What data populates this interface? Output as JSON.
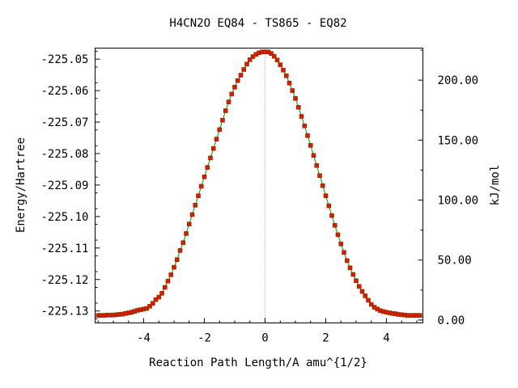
{
  "chart_data": {
    "type": "scatter",
    "title": "H4CN2O   EQ84 - TS865 - EQ82",
    "xlabel": "Reaction Path Length/A amu^{1/2}",
    "ylabel": "Energy/Hartree",
    "y2label": "kJ/mol",
    "xlim": [
      -5.6,
      5.2
    ],
    "ylim": [
      -225.1338,
      -225.0465
    ],
    "y2lim": [
      -2.4,
      226.7
    ],
    "x_ticks": [
      -4,
      -2,
      0,
      2,
      4
    ],
    "x_tick_labels": [
      "-4",
      "-2",
      "0",
      "2",
      "4"
    ],
    "y_ticks": [
      -225.05,
      -225.06,
      -225.07,
      -225.08,
      -225.09,
      -225.1,
      -225.11,
      -225.12,
      -225.13
    ],
    "y_tick_labels": [
      "-225.05",
      "-225.06",
      "-225.07",
      "-225.08",
      "-225.09",
      "-225.10",
      "-225.11",
      "-225.12",
      "-225.13"
    ],
    "y2_ticks": [
      200,
      150,
      100,
      50,
      0
    ],
    "y2_tick_labels": [
      "200.00",
      "150.00",
      "100.00",
      "50.00",
      "0.00"
    ],
    "ts_x": 0,
    "grid": false,
    "legend": "none",
    "colors": {
      "points": "#cc2200",
      "points_edge": "#992200",
      "line": "#00a000",
      "ts_marker": "#999999"
    },
    "series": [
      {
        "x": [
          -5.5,
          -5.4,
          -5.3,
          -5.2,
          -5.1,
          -5.0,
          -4.9,
          -4.8,
          -4.7,
          -4.6,
          -4.5,
          -4.4,
          -4.3,
          -4.2,
          -4.1,
          -4.0,
          -3.9,
          -3.8,
          -3.7,
          -3.6,
          -3.5,
          -3.4,
          -3.3,
          -3.2,
          -3.1,
          -3.0,
          -2.9,
          -2.8,
          -2.7,
          -2.6,
          -2.5,
          -2.4,
          -2.3,
          -2.2,
          -2.1,
          -2.0,
          -1.9,
          -1.8,
          -1.7,
          -1.6,
          -1.5,
          -1.4,
          -1.3,
          -1.2,
          -1.1,
          -1.0,
          -0.9,
          -0.8,
          -0.7,
          -0.6,
          -0.5,
          -0.4,
          -0.3,
          -0.2,
          -0.1,
          0.0,
          0.1,
          0.2,
          0.3,
          0.4,
          0.5,
          0.6,
          0.7,
          0.8,
          0.9,
          1.0,
          1.1,
          1.2,
          1.3,
          1.4,
          1.5,
          1.6,
          1.7,
          1.8,
          1.9,
          2.0,
          2.1,
          2.2,
          2.3,
          2.4,
          2.5,
          2.6,
          2.7,
          2.8,
          2.9,
          3.0,
          3.1,
          3.2,
          3.3,
          3.4,
          3.5,
          3.6,
          3.7,
          3.8,
          3.9,
          4.0,
          4.1,
          4.2,
          4.3,
          4.4,
          4.5,
          4.6,
          4.7,
          4.8,
          4.9,
          5.0,
          5.1
        ],
        "y": [
          -225.1314,
          -225.1314,
          -225.1314,
          -225.1313,
          -225.1313,
          -225.1313,
          -225.1312,
          -225.1311,
          -225.131,
          -225.1308,
          -225.1306,
          -225.1304,
          -225.1301,
          -225.1298,
          -225.1296,
          -225.1294,
          -225.1292,
          -225.1285,
          -225.1276,
          -225.1264,
          -225.1256,
          -225.1244,
          -225.1225,
          -225.1205,
          -225.1185,
          -225.1161,
          -225.1137,
          -225.1108,
          -225.1083,
          -225.1054,
          -225.1024,
          -225.0994,
          -225.0964,
          -225.0934,
          -225.0904,
          -225.0874,
          -225.0844,
          -225.0814,
          -225.0784,
          -225.0754,
          -225.0724,
          -225.0694,
          -225.0664,
          -225.0636,
          -225.0611,
          -225.0589,
          -225.0568,
          -225.0551,
          -225.0533,
          -225.0516,
          -225.0502,
          -225.0492,
          -225.0485,
          -225.048,
          -225.0477,
          -225.0477,
          -225.0477,
          -225.0482,
          -225.0491,
          -225.0503,
          -225.0518,
          -225.0535,
          -225.0553,
          -225.0576,
          -225.06,
          -225.0625,
          -225.0653,
          -225.0682,
          -225.0712,
          -225.0743,
          -225.0774,
          -225.0806,
          -225.0838,
          -225.087,
          -225.0902,
          -225.0934,
          -225.0966,
          -225.0997,
          -225.1028,
          -225.1058,
          -225.1087,
          -225.1114,
          -225.114,
          -225.1163,
          -225.1184,
          -225.1204,
          -225.1222,
          -225.1238,
          -225.1252,
          -225.1266,
          -225.1279,
          -225.1288,
          -225.1294,
          -225.1299,
          -225.1302,
          -225.1304,
          -225.1306,
          -225.1308,
          -225.1309,
          -225.1311,
          -225.1312,
          -225.1313,
          -225.1314,
          -225.1314,
          -225.1314,
          -225.1314,
          -225.1314
        ]
      }
    ]
  }
}
